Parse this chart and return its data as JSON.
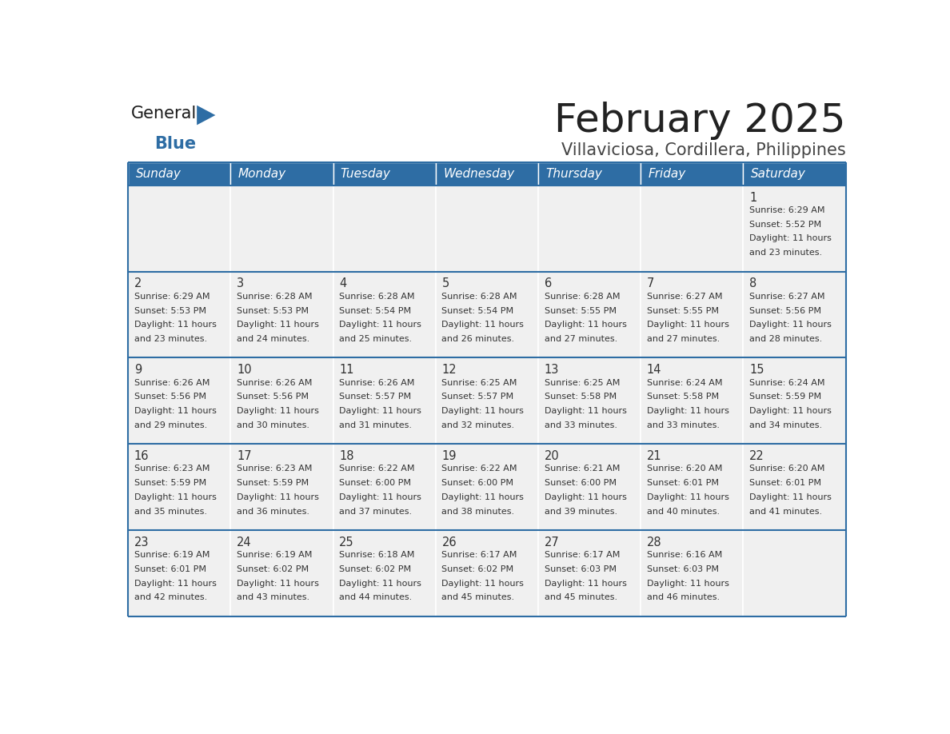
{
  "title": "February 2025",
  "subtitle": "Villaviciosa, Cordillera, Philippines",
  "days_of_week": [
    "Sunday",
    "Monday",
    "Tuesday",
    "Wednesday",
    "Thursday",
    "Friday",
    "Saturday"
  ],
  "header_bg": "#2E6DA4",
  "header_text_color": "#FFFFFF",
  "cell_bg": "#F0F0F0",
  "separator_color": "#2E6DA4",
  "col_separator_color": "#FFFFFF",
  "text_color": "#333333",
  "logo_general_color": "#1a1a1a",
  "logo_blue_color": "#2E6DA4",
  "calendar_data": [
    [
      {
        "day": null,
        "sunrise": null,
        "sunset": null,
        "daylight": null
      },
      {
        "day": null,
        "sunrise": null,
        "sunset": null,
        "daylight": null
      },
      {
        "day": null,
        "sunrise": null,
        "sunset": null,
        "daylight": null
      },
      {
        "day": null,
        "sunrise": null,
        "sunset": null,
        "daylight": null
      },
      {
        "day": null,
        "sunrise": null,
        "sunset": null,
        "daylight": null
      },
      {
        "day": null,
        "sunrise": null,
        "sunset": null,
        "daylight": null
      },
      {
        "day": 1,
        "sunrise": "6:29 AM",
        "sunset": "5:52 PM",
        "daylight": "11 hours\nand 23 minutes."
      }
    ],
    [
      {
        "day": 2,
        "sunrise": "6:29 AM",
        "sunset": "5:53 PM",
        "daylight": "11 hours\nand 23 minutes."
      },
      {
        "day": 3,
        "sunrise": "6:28 AM",
        "sunset": "5:53 PM",
        "daylight": "11 hours\nand 24 minutes."
      },
      {
        "day": 4,
        "sunrise": "6:28 AM",
        "sunset": "5:54 PM",
        "daylight": "11 hours\nand 25 minutes."
      },
      {
        "day": 5,
        "sunrise": "6:28 AM",
        "sunset": "5:54 PM",
        "daylight": "11 hours\nand 26 minutes."
      },
      {
        "day": 6,
        "sunrise": "6:28 AM",
        "sunset": "5:55 PM",
        "daylight": "11 hours\nand 27 minutes."
      },
      {
        "day": 7,
        "sunrise": "6:27 AM",
        "sunset": "5:55 PM",
        "daylight": "11 hours\nand 27 minutes."
      },
      {
        "day": 8,
        "sunrise": "6:27 AM",
        "sunset": "5:56 PM",
        "daylight": "11 hours\nand 28 minutes."
      }
    ],
    [
      {
        "day": 9,
        "sunrise": "6:26 AM",
        "sunset": "5:56 PM",
        "daylight": "11 hours\nand 29 minutes."
      },
      {
        "day": 10,
        "sunrise": "6:26 AM",
        "sunset": "5:56 PM",
        "daylight": "11 hours\nand 30 minutes."
      },
      {
        "day": 11,
        "sunrise": "6:26 AM",
        "sunset": "5:57 PM",
        "daylight": "11 hours\nand 31 minutes."
      },
      {
        "day": 12,
        "sunrise": "6:25 AM",
        "sunset": "5:57 PM",
        "daylight": "11 hours\nand 32 minutes."
      },
      {
        "day": 13,
        "sunrise": "6:25 AM",
        "sunset": "5:58 PM",
        "daylight": "11 hours\nand 33 minutes."
      },
      {
        "day": 14,
        "sunrise": "6:24 AM",
        "sunset": "5:58 PM",
        "daylight": "11 hours\nand 33 minutes."
      },
      {
        "day": 15,
        "sunrise": "6:24 AM",
        "sunset": "5:59 PM",
        "daylight": "11 hours\nand 34 minutes."
      }
    ],
    [
      {
        "day": 16,
        "sunrise": "6:23 AM",
        "sunset": "5:59 PM",
        "daylight": "11 hours\nand 35 minutes."
      },
      {
        "day": 17,
        "sunrise": "6:23 AM",
        "sunset": "5:59 PM",
        "daylight": "11 hours\nand 36 minutes."
      },
      {
        "day": 18,
        "sunrise": "6:22 AM",
        "sunset": "6:00 PM",
        "daylight": "11 hours\nand 37 minutes."
      },
      {
        "day": 19,
        "sunrise": "6:22 AM",
        "sunset": "6:00 PM",
        "daylight": "11 hours\nand 38 minutes."
      },
      {
        "day": 20,
        "sunrise": "6:21 AM",
        "sunset": "6:00 PM",
        "daylight": "11 hours\nand 39 minutes."
      },
      {
        "day": 21,
        "sunrise": "6:20 AM",
        "sunset": "6:01 PM",
        "daylight": "11 hours\nand 40 minutes."
      },
      {
        "day": 22,
        "sunrise": "6:20 AM",
        "sunset": "6:01 PM",
        "daylight": "11 hours\nand 41 minutes."
      }
    ],
    [
      {
        "day": 23,
        "sunrise": "6:19 AM",
        "sunset": "6:01 PM",
        "daylight": "11 hours\nand 42 minutes."
      },
      {
        "day": 24,
        "sunrise": "6:19 AM",
        "sunset": "6:02 PM",
        "daylight": "11 hours\nand 43 minutes."
      },
      {
        "day": 25,
        "sunrise": "6:18 AM",
        "sunset": "6:02 PM",
        "daylight": "11 hours\nand 44 minutes."
      },
      {
        "day": 26,
        "sunrise": "6:17 AM",
        "sunset": "6:02 PM",
        "daylight": "11 hours\nand 45 minutes."
      },
      {
        "day": 27,
        "sunrise": "6:17 AM",
        "sunset": "6:03 PM",
        "daylight": "11 hours\nand 45 minutes."
      },
      {
        "day": 28,
        "sunrise": "6:16 AM",
        "sunset": "6:03 PM",
        "daylight": "11 hours\nand 46 minutes."
      },
      {
        "day": null,
        "sunrise": null,
        "sunset": null,
        "daylight": null
      }
    ]
  ]
}
